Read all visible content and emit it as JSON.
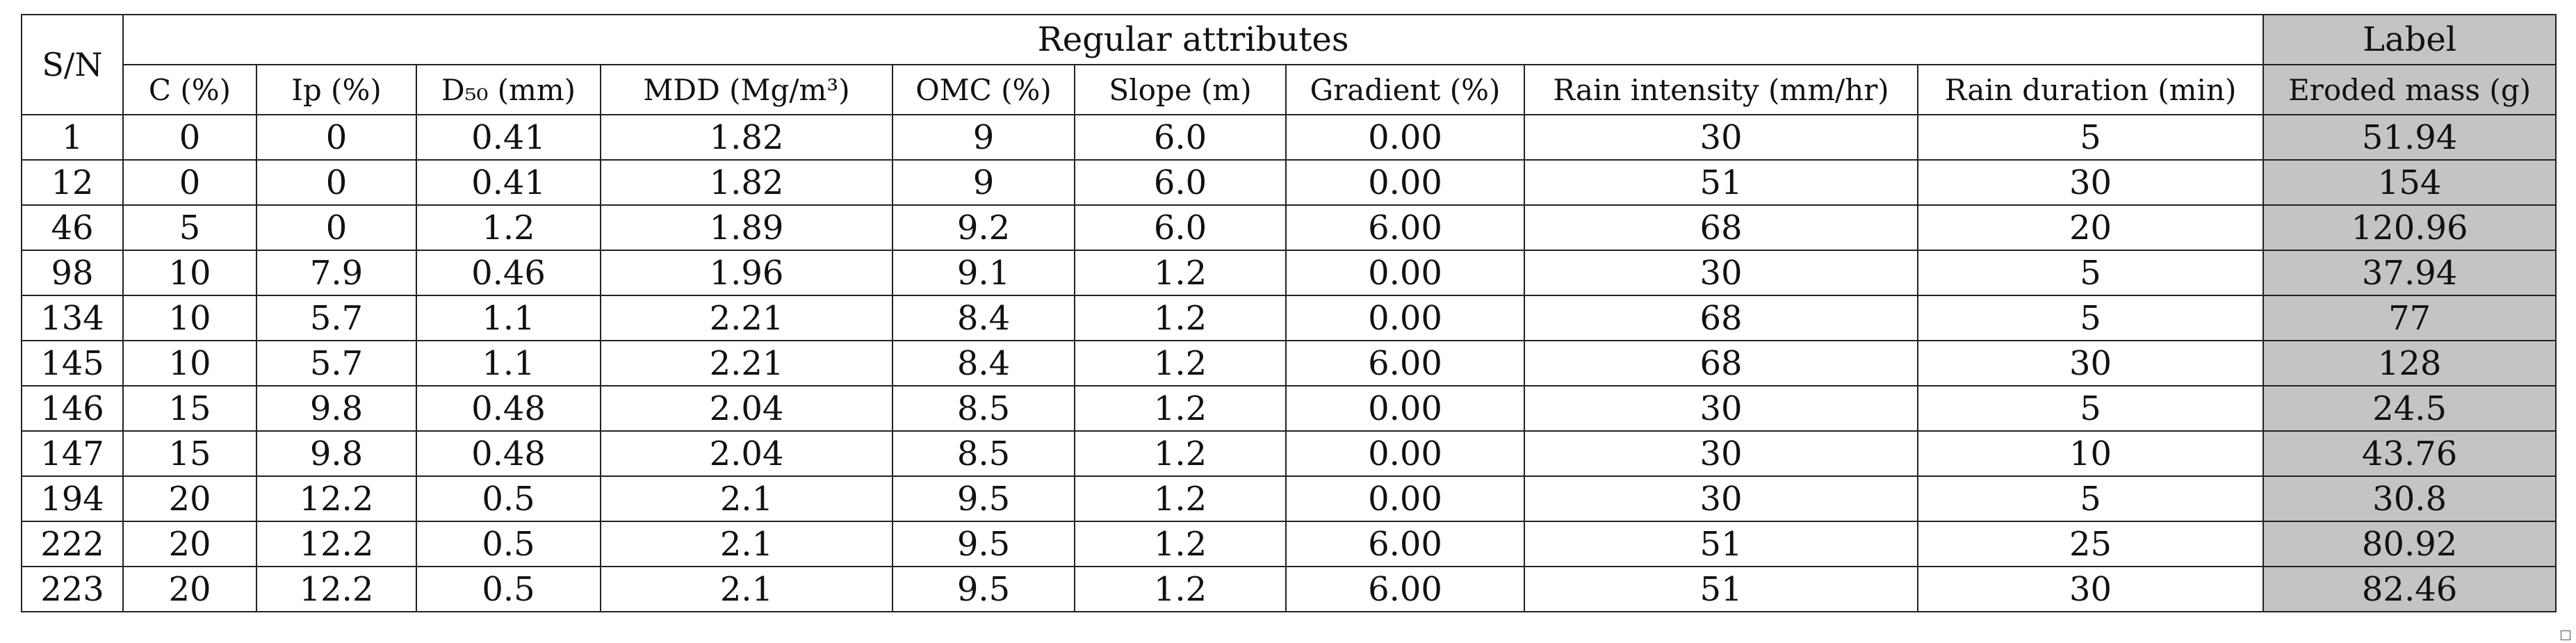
{
  "table": {
    "sn_header": "S/N",
    "group_header": "Regular attributes",
    "label_header": "Label",
    "columns": [
      "C (%)",
      "Ip (%)",
      "D₅₀ (mm)",
      "MDD (Mg/m³)",
      "OMC (%)",
      "Slope (m)",
      "Gradient (%)",
      "Rain intensity (mm/hr)",
      "Rain duration (min)"
    ],
    "label_column": "Eroded mass (g)",
    "rows": [
      [
        "1",
        "0",
        "0",
        "0.41",
        "1.82",
        "9",
        "6.0",
        "0.00",
        "30",
        "5",
        "51.94"
      ],
      [
        "12",
        "0",
        "0",
        "0.41",
        "1.82",
        "9",
        "6.0",
        "0.00",
        "51",
        "30",
        "154"
      ],
      [
        "46",
        "5",
        "0",
        "1.2",
        "1.89",
        "9.2",
        "6.0",
        "6.00",
        "68",
        "20",
        "120.96"
      ],
      [
        "98",
        "10",
        "7.9",
        "0.46",
        "1.96",
        "9.1",
        "1.2",
        "0.00",
        "30",
        "5",
        "37.94"
      ],
      [
        "134",
        "10",
        "5.7",
        "1.1",
        "2.21",
        "8.4",
        "1.2",
        "0.00",
        "68",
        "5",
        "77"
      ],
      [
        "145",
        "10",
        "5.7",
        "1.1",
        "2.21",
        "8.4",
        "1.2",
        "6.00",
        "68",
        "30",
        "128"
      ],
      [
        "146",
        "15",
        "9.8",
        "0.48",
        "2.04",
        "8.5",
        "1.2",
        "0.00",
        "30",
        "5",
        "24.5"
      ],
      [
        "147",
        "15",
        "9.8",
        "0.48",
        "2.04",
        "8.5",
        "1.2",
        "0.00",
        "30",
        "10",
        "43.76"
      ],
      [
        "194",
        "20",
        "12.2",
        "0.5",
        "2.1",
        "9.5",
        "1.2",
        "0.00",
        "30",
        "5",
        "30.8"
      ],
      [
        "222",
        "20",
        "12.2",
        "0.5",
        "2.1",
        "9.5",
        "1.2",
        "6.00",
        "51",
        "25",
        "80.92"
      ],
      [
        "223",
        "20",
        "12.2",
        "0.5",
        "2.1",
        "9.5",
        "1.2",
        "6.00",
        "51",
        "30",
        "82.46"
      ]
    ]
  },
  "colors": {
    "label_fill": "#c4c4c4",
    "border": "#222222",
    "text": "#111111"
  }
}
